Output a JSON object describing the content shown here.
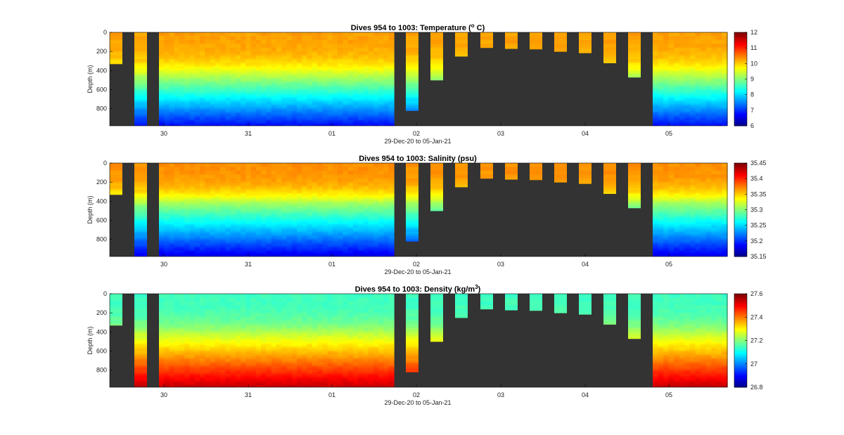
{
  "chart_data": [
    {
      "type": "heatmap",
      "title": "Dives 954 to 1003: Temperature (",
      "title_sup": "o",
      "title_suffix": " C)",
      "ylabel": "Depth (m)",
      "xlabel": "29-Dec-20 to 05-Jan-21",
      "x_ticks": [
        "30",
        "31",
        "01",
        "02",
        "03",
        "04",
        "05"
      ],
      "y_ticks": [
        "0",
        "200",
        "400",
        "600",
        "800"
      ],
      "ylim": [
        0,
        980
      ],
      "colorbar_ticks": [
        "12",
        "11",
        "10",
        "9",
        "8",
        "7",
        "6"
      ],
      "colorbar_range": [
        6,
        12
      ],
      "surface_value": 10.3,
      "mid_value": 9.5,
      "deep_value": 6.8,
      "thermocline_depth_m": 420
    },
    {
      "type": "heatmap",
      "title": "Dives 954 to 1003: Salinity (psu)",
      "title_sup": "",
      "title_suffix": "",
      "ylabel": "Depth (m)",
      "xlabel": "29-Dec-20 to 05-Jan-21",
      "x_ticks": [
        "30",
        "31",
        "01",
        "02",
        "03",
        "04",
        "05"
      ],
      "y_ticks": [
        "0",
        "200",
        "400",
        "600",
        "800"
      ],
      "ylim": [
        0,
        980
      ],
      "colorbar_ticks": [
        "35.45",
        "35.4",
        "35.35",
        "35.3",
        "35.25",
        "35.2",
        "35.15"
      ],
      "colorbar_range": [
        35.15,
        35.45
      ],
      "surface_value": 35.37,
      "mid_value": 35.31,
      "deep_value": 35.18,
      "thermocline_depth_m": 420
    },
    {
      "type": "heatmap",
      "title": "Dives 954 to 1003: Density (kg/m",
      "title_sup": "3",
      "title_suffix": ")",
      "ylabel": "Depth (m)",
      "xlabel": "29-Dec-20 to 05-Jan-21",
      "x_ticks": [
        "30",
        "31",
        "01",
        "02",
        "03",
        "04",
        "05"
      ],
      "y_ticks": [
        "0",
        "200",
        "400",
        "600",
        "800"
      ],
      "ylim": [
        0,
        980
      ],
      "colorbar_ticks": [
        "27.6",
        "27.4",
        "27.2",
        "27",
        "26.8"
      ],
      "colorbar_range": [
        26.8,
        27.6
      ],
      "surface_value": 27.15,
      "mid_value": 27.25,
      "deep_value": 27.55,
      "thermocline_depth_m": 420
    }
  ],
  "dives": {
    "left_max_depths_m": [
      330,
      980
    ],
    "shallow_max_depths_m": [
      820,
      500,
      250,
      160,
      170,
      175,
      200,
      215,
      320,
      470
    ]
  },
  "colors": {
    "background_fill": "#333333",
    "text": "#000000"
  }
}
